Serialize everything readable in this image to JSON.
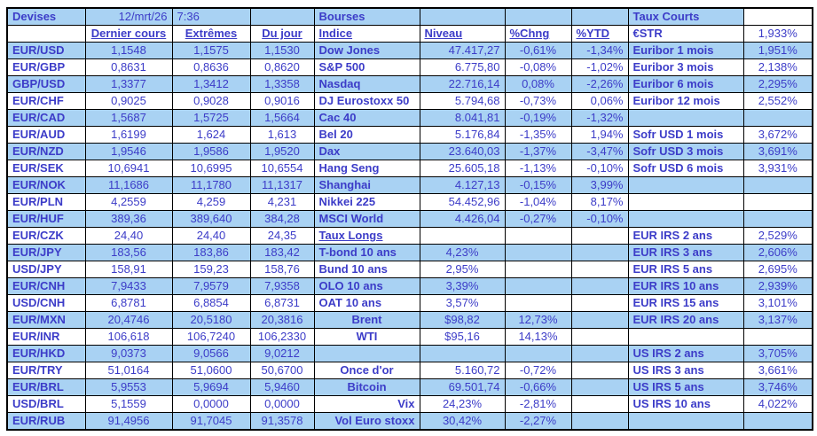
{
  "colors": {
    "row_highlight": "#a9d2f3",
    "text_blue": "#3c3cc8",
    "border": "#000000"
  },
  "header": {
    "devises_label": "Devises",
    "date": "12/mrt/26",
    "time": "7:36",
    "bourses_label": "Bourses",
    "taux_courts_label": "Taux Courts",
    "col_dernier_cours": "Dernier cours",
    "col_extremes": "Extrêmes",
    "col_du_jour": "Du jour",
    "col_indice": "Indice",
    "col_niveau": "Niveau",
    "col_chng": "%Chng",
    "col_ytd": "%YTD",
    "estr_label": "€STR",
    "estr_value": "1,933%"
  },
  "rows": [
    {
      "pair": "EUR/USD",
      "last": "1,1548",
      "ext": "1,1575",
      "jour": "1,1530",
      "indice": "Dow Jones",
      "ia": "l",
      "niveau": "47.417,27",
      "na": "r",
      "chng": "-0,61%",
      "ytd": "-1,34%",
      "taux": "Euribor 1 mois",
      "tv": "1,951%"
    },
    {
      "pair": "EUR/GBP",
      "last": "0,8631",
      "ext": "0,8636",
      "jour": "0,8620",
      "indice": "S&P 500",
      "ia": "l",
      "niveau": "6.775,80",
      "na": "r",
      "chng": "-0,08%",
      "ytd": "-1,02%",
      "taux": "Euribor 3 mois",
      "tv": "2,138%"
    },
    {
      "pair": "GBP/USD",
      "last": "1,3377",
      "ext": "1,3412",
      "jour": "1,3358",
      "indice": "Nasdaq",
      "ia": "l",
      "niveau": "22.716,14",
      "na": "r",
      "chng": "0,08%",
      "ytd": "-2,26%",
      "taux": "Euribor 6 mois",
      "tv": "2,295%"
    },
    {
      "pair": "EUR/CHF",
      "last": "0,9025",
      "ext": "0,9028",
      "jour": "0,9016",
      "indice": "DJ Eurostoxx 50",
      "ia": "l",
      "niveau": "5.794,68",
      "na": "r",
      "chng": "-0,73%",
      "ytd": "0,06%",
      "taux": "Euribor 12 mois",
      "tv": "2,552%"
    },
    {
      "pair": "EUR/CAD",
      "last": "1,5687",
      "ext": "1,5725",
      "jour": "1,5664",
      "indice": "Cac 40",
      "ia": "l",
      "niveau": "8.041,81",
      "na": "r",
      "chng": "-0,19%",
      "ytd": "-1,32%",
      "taux": "",
      "tv": ""
    },
    {
      "pair": "EUR/AUD",
      "last": "1,6199",
      "ext": "1,624",
      "jour": "1,613",
      "indice": "Bel 20",
      "ia": "l",
      "niveau": "5.176,84",
      "na": "r",
      "chng": "-1,35%",
      "ytd": "1,94%",
      "taux": "Sofr USD 1 mois",
      "tv": "3,672%"
    },
    {
      "pair": "EUR/NZD",
      "last": "1,9546",
      "ext": "1,9586",
      "jour": "1,9520",
      "indice": "Dax",
      "ia": "l",
      "niveau": "23.640,03",
      "na": "r",
      "chng": "-1,37%",
      "ytd": "-3,47%",
      "taux": "Sofr USD 3 mois",
      "tv": "3,691%"
    },
    {
      "pair": "EUR/SEK",
      "last": "10,6941",
      "ext": "10,6995",
      "jour": "10,6554",
      "indice": "Hang Seng",
      "ia": "l",
      "niveau": "25.605,18",
      "na": "r",
      "chng": "-1,13%",
      "ytd": "-0,10%",
      "taux": "Sofr USD 6 mois",
      "tv": "3,931%"
    },
    {
      "pair": "EUR/NOK",
      "last": "11,1686",
      "ext": "11,1780",
      "jour": "11,1317",
      "indice": "Shanghai",
      "ia": "l",
      "niveau": "4.127,13",
      "na": "r",
      "chng": "-0,15%",
      "ytd": "3,99%",
      "taux": "",
      "tv": ""
    },
    {
      "pair": "EUR/PLN",
      "last": "4,2559",
      "ext": "4,259",
      "jour": "4,231",
      "indice": "Nikkei 225",
      "ia": "l",
      "niveau": "54.452,96",
      "na": "r",
      "chng": "-1,04%",
      "ytd": "8,17%",
      "taux": "",
      "tv": ""
    },
    {
      "pair": "EUR/HUF",
      "last": "389,36",
      "ext": "389,640",
      "jour": "384,28",
      "indice": "MSCI World",
      "ia": "l",
      "niveau": "4.426,04",
      "na": "r",
      "chng": "-0,27%",
      "ytd": "-0,10%",
      "taux": "",
      "tv": ""
    },
    {
      "pair": "EUR/CZK",
      "last": "24,40",
      "ext": "24,40",
      "jour": "24,35",
      "indice": "Taux Longs",
      "ia": "u",
      "niveau": "",
      "na": "r",
      "chng": "",
      "ytd": "",
      "taux": "EUR IRS 2 ans",
      "tv": "2,529%"
    },
    {
      "pair": "EUR/JPY",
      "last": "183,56",
      "ext": "183,86",
      "jour": "183,42",
      "indice": "T-bond 10 ans",
      "ia": "l",
      "niveau": "4,23%",
      "na": "c",
      "chng": "",
      "ytd": "",
      "taux": "EUR IRS 3 ans",
      "tv": "2,606%"
    },
    {
      "pair": "USD/JPY",
      "last": "158,91",
      "ext": "159,23",
      "jour": "158,76",
      "indice": "Bund 10 ans",
      "ia": "l",
      "niveau": "2,95%",
      "na": "c",
      "chng": "",
      "ytd": "",
      "taux": "EUR IRS 5 ans",
      "tv": "2,695%"
    },
    {
      "pair": "EUR/CNH",
      "last": "7,9433",
      "ext": "7,9579",
      "jour": "7,9358",
      "indice": "OLO 10 ans",
      "ia": "l",
      "niveau": "3,39%",
      "na": "c",
      "chng": "",
      "ytd": "",
      "taux": "EUR IRS 10 ans",
      "tv": "2,939%"
    },
    {
      "pair": "USD/CNH",
      "last": "6,8781",
      "ext": "6,8854",
      "jour": "6,8731",
      "indice": "OAT 10 ans",
      "ia": "l",
      "niveau": "3,57%",
      "na": "c",
      "chng": "",
      "ytd": "",
      "taux": "EUR IRS 15 ans",
      "tv": "3,101%"
    },
    {
      "pair": "EUR/MXN",
      "last": "20,4746",
      "ext": "20,5180",
      "jour": "20,3816",
      "indice": "Brent",
      "ia": "c",
      "niveau": "$98,82",
      "na": "c",
      "chng": "12,73%",
      "ytd": "",
      "taux": "EUR IRS 20 ans",
      "tv": "3,137%"
    },
    {
      "pair": "EUR/INR",
      "last": "106,618",
      "ext": "106,7240",
      "jour": "106,2330",
      "indice": "WTI",
      "ia": "c",
      "niveau": "$95,16",
      "na": "c",
      "chng": "14,13%",
      "ytd": "",
      "taux": "",
      "tv": ""
    },
    {
      "pair": "EUR/HKD",
      "last": "9,0373",
      "ext": "9,0566",
      "jour": "9,0212",
      "indice": "",
      "ia": "l",
      "niveau": "",
      "na": "r",
      "chng": "",
      "ytd": "",
      "taux": "US IRS 2 ans",
      "tv": "3,705%"
    },
    {
      "pair": "EUR/TRY",
      "last": "51,0164",
      "ext": "51,0600",
      "jour": "50,6700",
      "indice": "Once d'or",
      "ia": "c",
      "niveau": "5.160,72",
      "na": "r",
      "chng": "-0,72%",
      "ytd": "",
      "taux": "US IRS 3 ans",
      "tv": "3,661%"
    },
    {
      "pair": "EUR/BRL",
      "last": "5,9553",
      "ext": "5,9694",
      "jour": "5,9460",
      "indice": "Bitcoin",
      "ia": "c",
      "niveau": "69.501,74",
      "na": "r",
      "chng": "-0,66%",
      "ytd": "",
      "taux": "US IRS 5 ans",
      "tv": "3,746%"
    },
    {
      "pair": "USD/BRL",
      "last": "5,1559",
      "ext": "0,0000",
      "jour": "0,0000",
      "indice": "Vix",
      "ia": "r",
      "niveau": "24,23%",
      "na": "c",
      "chng": "-2,81%",
      "ytd": "",
      "taux": "US IRS 10 ans",
      "tv": "4,022%"
    },
    {
      "pair": "EUR/RUB",
      "last": "91,4956",
      "ext": "91,7045",
      "jour": "91,3578",
      "indice": "Vol Euro stoxx",
      "ia": "r",
      "niveau": "30,42%",
      "na": "c",
      "chng": "-2,27%",
      "ytd": "",
      "taux": "",
      "tv": ""
    }
  ]
}
